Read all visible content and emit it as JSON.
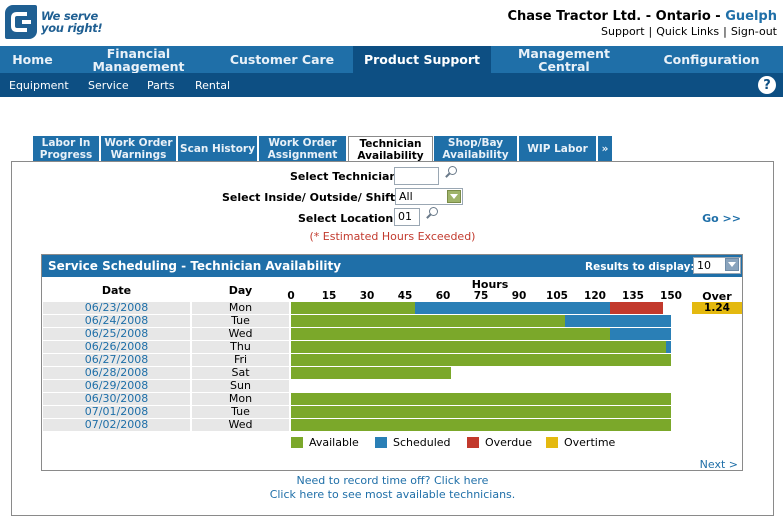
{
  "header": {
    "logo_tagline_1": "We serve",
    "logo_tagline_2": "you right!",
    "company": "Chase Tractor Ltd. - Ontario - ",
    "city": "Guelph",
    "links": [
      "Support",
      "Quick Links",
      "Sign-out"
    ]
  },
  "mainnav": {
    "items": [
      {
        "label": "Home"
      },
      {
        "label": "Financial Management"
      },
      {
        "label": "Customer Care"
      },
      {
        "label": "Product Support"
      },
      {
        "label": "Management Central"
      },
      {
        "label": "Configuration"
      }
    ],
    "active": "Product Support"
  },
  "subnav": {
    "items": [
      "Equipment",
      "Service",
      "Parts",
      "Rental"
    ],
    "help_label": "?"
  },
  "tabs": {
    "items": [
      {
        "label": "Labor In Progress"
      },
      {
        "label": "Work Order Warnings"
      },
      {
        "label": "Scan History"
      },
      {
        "label": "Work Order Assignment"
      },
      {
        "label": "Technician Availability"
      },
      {
        "label": "Shop/Bay Availability"
      },
      {
        "label": "WIP Labor"
      },
      {
        "label": "»"
      }
    ],
    "active": "Technician Availability"
  },
  "form": {
    "technician_label": "Select Technician:",
    "technician_value": "",
    "shift_label": "Select Inside/ Outside/ Shift:",
    "shift_value": "All",
    "location_label": "Select Location:",
    "location_value": "01",
    "go_label": "Go >>",
    "estimated_note": "(* Estimated Hours Exceeded)"
  },
  "panel": {
    "title": "Service Scheduling - Technician Availability",
    "results_label": "Results to display:",
    "results_value": "10",
    "date_header": "Date",
    "day_header": "Day",
    "hours_header": "Hours",
    "over_header": "Over",
    "next_label": "Next >"
  },
  "chart_data": {
    "type": "bar",
    "orientation": "horizontal",
    "stacked": true,
    "xlabel": "Hours",
    "xlim": [
      0,
      150
    ],
    "ticks": [
      0,
      15,
      30,
      45,
      60,
      75,
      90,
      105,
      120,
      135,
      150
    ],
    "categories": [
      "06/23/2008",
      "06/24/2008",
      "06/25/2008",
      "06/26/2008",
      "06/27/2008",
      "06/28/2008",
      "06/29/2008",
      "06/30/2008",
      "07/01/2008",
      "07/02/2008"
    ],
    "days": [
      "Mon",
      "Tue",
      "Wed",
      "Thu",
      "Fri",
      "Sat",
      "Sun",
      "Mon",
      "Tue",
      "Wed"
    ],
    "series": [
      {
        "name": "Available",
        "color": "#7ba82a",
        "values": [
          49,
          108,
          126,
          148,
          150,
          63,
          0,
          150,
          150,
          150
        ]
      },
      {
        "name": "Scheduled",
        "color": "#2a7fb6",
        "values": [
          77,
          42,
          24,
          2,
          0,
          0,
          0,
          0,
          0,
          0
        ]
      },
      {
        "name": "Overdue",
        "color": "#c2392c",
        "values": [
          21,
          0,
          0,
          0,
          0,
          0,
          0,
          0,
          0,
          0
        ]
      },
      {
        "name": "Overtime",
        "color": "#e4b90f",
        "values": [
          0,
          0,
          0,
          0,
          0,
          0,
          0,
          0,
          0,
          0
        ]
      }
    ],
    "over": [
      "1.24",
      "",
      "",
      "",
      "",
      "",
      "",
      "",
      "",
      ""
    ],
    "legend_position": "bottom"
  },
  "bottom": {
    "record_time_off": "Need to record time off? Click here",
    "most_available": "Click here to see most available technicians."
  }
}
